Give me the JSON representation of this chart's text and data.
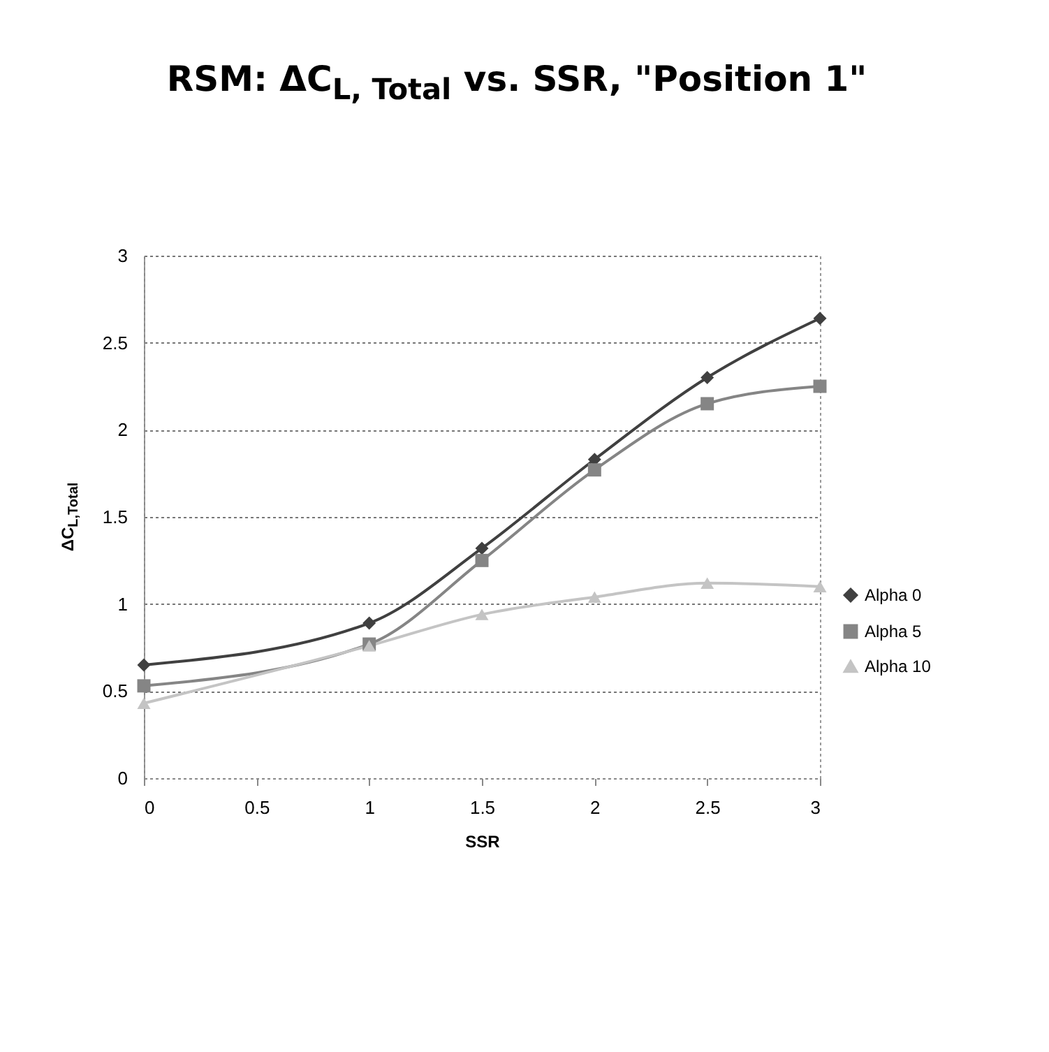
{
  "chart_data": {
    "type": "line",
    "title": "RSM: ΔC$_{L, Total}$ vs. SSR, \"Position 1\"",
    "xlabel": "SSR",
    "ylabel": "ΔC$_{L,Total}$",
    "x": [
      0,
      1,
      1.5,
      2,
      2.5,
      3
    ],
    "series": [
      {
        "name": "Alpha 0",
        "color": "#404040",
        "marker": "diamond",
        "values": [
          0.65,
          0.89,
          1.32,
          1.83,
          2.3,
          2.64
        ]
      },
      {
        "name": "Alpha 5",
        "color": "#858585",
        "marker": "square",
        "values": [
          0.53,
          0.77,
          1.25,
          1.77,
          2.15,
          2.25
        ]
      },
      {
        "name": "Alpha 10",
        "color": "#c4c4c4",
        "marker": "triangle",
        "values": [
          0.43,
          0.76,
          0.94,
          1.04,
          1.12,
          1.1
        ]
      }
    ],
    "xlim": [
      0,
      3
    ],
    "xticks": [
      0,
      0.5,
      1,
      1.5,
      2,
      2.5,
      3
    ],
    "ylim": [
      0,
      3
    ],
    "yticks": [
      0,
      0.5,
      1,
      1.5,
      2,
      2.5,
      3
    ],
    "grid": "y",
    "legend": "right"
  }
}
